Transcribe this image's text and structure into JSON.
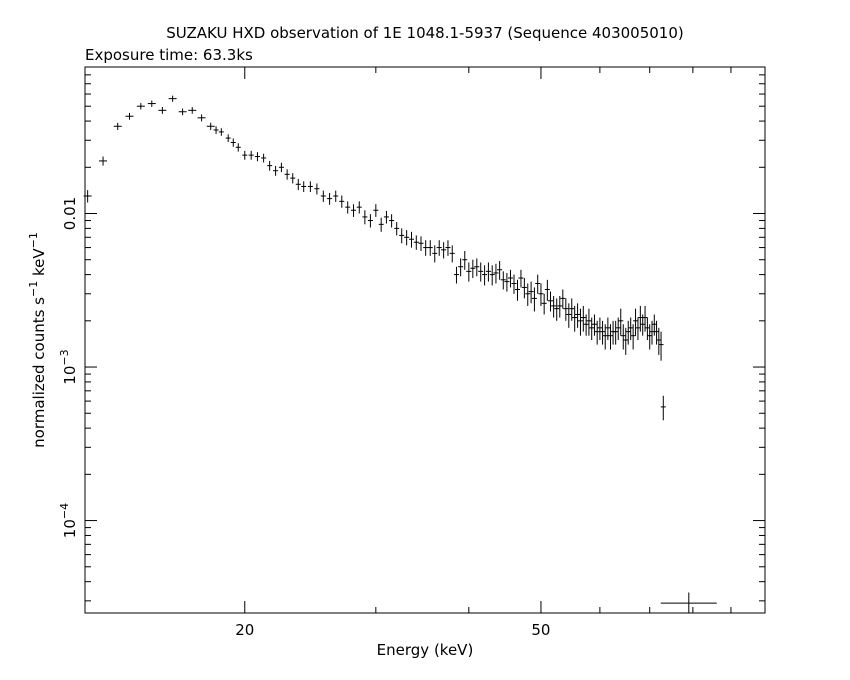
{
  "chart_data": {
    "type": "scatter",
    "title": "SUZAKU HXD observation of 1E 1048.1-5937 (Sequence 403005010)",
    "subtitle": "Exposure time: 63.3ks",
    "xlabel": "Energy (keV)",
    "ylabel_parts": {
      "base": "normalized counts s",
      "sup1": "−1",
      "mid": " keV",
      "sup2": "−1"
    },
    "xscale": "log",
    "yscale": "log",
    "xlim": [
      12.2,
      100
    ],
    "ylim": [
      2.5e-05,
      0.09
    ],
    "x_ticklabels": [
      {
        "value": 20,
        "label": "20"
      },
      {
        "value": 50,
        "label": "50"
      }
    ],
    "y_ticklabels": [
      {
        "value": 0.01,
        "base": "0.01",
        "exp": ""
      },
      {
        "value": 0.001,
        "base": "10",
        "exp": "−3"
      },
      {
        "value": 0.0001,
        "base": "10",
        "exp": "−4"
      }
    ],
    "series": [
      {
        "points": [
          [
            12.3,
            0.013,
            0.0012
          ],
          [
            12.9,
            0.022,
            0.0015
          ],
          [
            13.5,
            0.037,
            0.002
          ],
          [
            14.0,
            0.043,
            0.0022
          ],
          [
            14.5,
            0.05,
            0.0024
          ],
          [
            15.0,
            0.052,
            0.0025
          ],
          [
            15.5,
            0.047,
            0.0024
          ],
          [
            16.0,
            0.056,
            0.0026
          ],
          [
            16.5,
            0.046,
            0.0023
          ],
          [
            17.0,
            0.047,
            0.0023
          ],
          [
            17.5,
            0.042,
            0.0022
          ],
          [
            18.0,
            0.037,
            0.002
          ],
          [
            18.3,
            0.035,
            0.002
          ],
          [
            18.6,
            0.034,
            0.0019
          ],
          [
            19.0,
            0.031,
            0.0018
          ],
          [
            19.3,
            0.029,
            0.0018
          ],
          [
            19.6,
            0.027,
            0.0017
          ],
          [
            20.0,
            0.024,
            0.0016
          ],
          [
            20.4,
            0.024,
            0.0016
          ],
          [
            20.8,
            0.0235,
            0.0016
          ],
          [
            21.2,
            0.023,
            0.0015
          ],
          [
            21.6,
            0.0205,
            0.0015
          ],
          [
            22.0,
            0.019,
            0.0014
          ],
          [
            22.4,
            0.02,
            0.0014
          ],
          [
            22.8,
            0.018,
            0.0014
          ],
          [
            23.2,
            0.017,
            0.0013
          ],
          [
            23.6,
            0.0155,
            0.0013
          ],
          [
            24.0,
            0.015,
            0.0012
          ],
          [
            24.5,
            0.015,
            0.0012
          ],
          [
            25.0,
            0.0145,
            0.0012
          ],
          [
            25.5,
            0.013,
            0.0011
          ],
          [
            26.0,
            0.0125,
            0.0011
          ],
          [
            26.5,
            0.013,
            0.0011
          ],
          [
            27.0,
            0.012,
            0.0011
          ],
          [
            27.5,
            0.011,
            0.001
          ],
          [
            28.0,
            0.0105,
            0.001
          ],
          [
            28.5,
            0.011,
            0.001
          ],
          [
            29.0,
            0.0095,
            0.001
          ],
          [
            29.5,
            0.009,
            0.0009
          ],
          [
            30.0,
            0.0105,
            0.001
          ],
          [
            30.5,
            0.0085,
            0.0009
          ],
          [
            31.0,
            0.0095,
            0.0009
          ],
          [
            31.5,
            0.009,
            0.0009
          ],
          [
            32.0,
            0.008,
            0.0008
          ],
          [
            32.5,
            0.0072,
            0.0008
          ],
          [
            33.0,
            0.007,
            0.0008
          ],
          [
            33.5,
            0.0068,
            0.0008
          ],
          [
            34.0,
            0.0065,
            0.0007
          ],
          [
            34.5,
            0.0064,
            0.0007
          ],
          [
            35.0,
            0.006,
            0.0007
          ],
          [
            35.5,
            0.006,
            0.0007
          ],
          [
            36.0,
            0.0055,
            0.0007
          ],
          [
            36.5,
            0.006,
            0.0007
          ],
          [
            37.0,
            0.0058,
            0.0007
          ],
          [
            37.5,
            0.006,
            0.0007
          ],
          [
            38.0,
            0.0055,
            0.0007
          ],
          [
            38.5,
            0.004,
            0.0005
          ],
          [
            39.0,
            0.0045,
            0.0006
          ],
          [
            39.5,
            0.005,
            0.0007
          ],
          [
            40.0,
            0.0042,
            0.0006
          ],
          [
            40.5,
            0.0044,
            0.0006
          ],
          [
            41.0,
            0.0045,
            0.0006
          ],
          [
            41.5,
            0.0042,
            0.0006
          ],
          [
            42.0,
            0.004,
            0.0006
          ],
          [
            42.5,
            0.0042,
            0.0006
          ],
          [
            43.0,
            0.004,
            0.0006
          ],
          [
            43.5,
            0.0041,
            0.0006
          ],
          [
            44.0,
            0.0043,
            0.0006
          ],
          [
            44.5,
            0.0037,
            0.0005
          ],
          [
            45.0,
            0.0036,
            0.0005
          ],
          [
            45.5,
            0.0038,
            0.0005
          ],
          [
            46.0,
            0.0035,
            0.0005
          ],
          [
            46.5,
            0.0032,
            0.0005
          ],
          [
            47.0,
            0.0038,
            0.0005
          ],
          [
            47.5,
            0.0033,
            0.0005
          ],
          [
            48.0,
            0.003,
            0.0005
          ],
          [
            48.5,
            0.0031,
            0.0005
          ],
          [
            49.0,
            0.0028,
            0.0005
          ],
          [
            49.5,
            0.0035,
            0.0005
          ],
          [
            50.0,
            0.003,
            0.0005
          ],
          [
            50.5,
            0.0026,
            0.0004
          ],
          [
            51.0,
            0.0032,
            0.0005
          ],
          [
            51.5,
            0.0027,
            0.0004
          ],
          [
            52.0,
            0.0025,
            0.0004
          ],
          [
            52.5,
            0.0024,
            0.0004
          ],
          [
            53.0,
            0.0025,
            0.0004
          ],
          [
            53.5,
            0.0028,
            0.0004
          ],
          [
            54.0,
            0.0024,
            0.0004
          ],
          [
            54.5,
            0.0022,
            0.0004
          ],
          [
            55.0,
            0.0024,
            0.0004
          ],
          [
            55.5,
            0.0021,
            0.0004
          ],
          [
            56.0,
            0.0022,
            0.0004
          ],
          [
            56.5,
            0.002,
            0.0004
          ],
          [
            57.0,
            0.0021,
            0.0004
          ],
          [
            57.5,
            0.0019,
            0.0003
          ],
          [
            58.0,
            0.002,
            0.0004
          ],
          [
            58.5,
            0.0018,
            0.0003
          ],
          [
            59.0,
            0.0019,
            0.0003
          ],
          [
            59.5,
            0.0017,
            0.0003
          ],
          [
            60.0,
            0.0018,
            0.0003
          ],
          [
            60.5,
            0.0017,
            0.0003
          ],
          [
            61.0,
            0.0016,
            0.0003
          ],
          [
            61.5,
            0.0018,
            0.0003
          ],
          [
            62.0,
            0.0016,
            0.0003
          ],
          [
            62.5,
            0.0017,
            0.0003
          ],
          [
            63.0,
            0.0017,
            0.0003
          ],
          [
            63.5,
            0.0018,
            0.0003
          ],
          [
            64.0,
            0.002,
            0.0004
          ],
          [
            64.5,
            0.0016,
            0.0003
          ],
          [
            65.0,
            0.0015,
            0.0003
          ],
          [
            65.5,
            0.0017,
            0.0003
          ],
          [
            66.0,
            0.0018,
            0.0003
          ],
          [
            66.5,
            0.0016,
            0.0003
          ],
          [
            67.0,
            0.002,
            0.0004
          ],
          [
            67.5,
            0.0018,
            0.0003
          ],
          [
            68.0,
            0.0021,
            0.0004
          ],
          [
            68.5,
            0.0019,
            0.0003
          ],
          [
            69.0,
            0.0021,
            0.0004
          ],
          [
            69.5,
            0.0018,
            0.0003
          ],
          [
            70.0,
            0.0016,
            0.0003
          ],
          [
            70.5,
            0.0017,
            0.0003
          ],
          [
            71.0,
            0.0019,
            0.0003
          ],
          [
            71.5,
            0.0017,
            0.0003
          ],
          [
            72.0,
            0.0015,
            0.0003
          ],
          [
            72.5,
            0.0014,
            0.0003
          ],
          [
            73.0,
            0.00055,
            0.0001
          ],
          [
            79.0,
            2.9e-05,
            5e-06
          ]
        ]
      }
    ]
  }
}
